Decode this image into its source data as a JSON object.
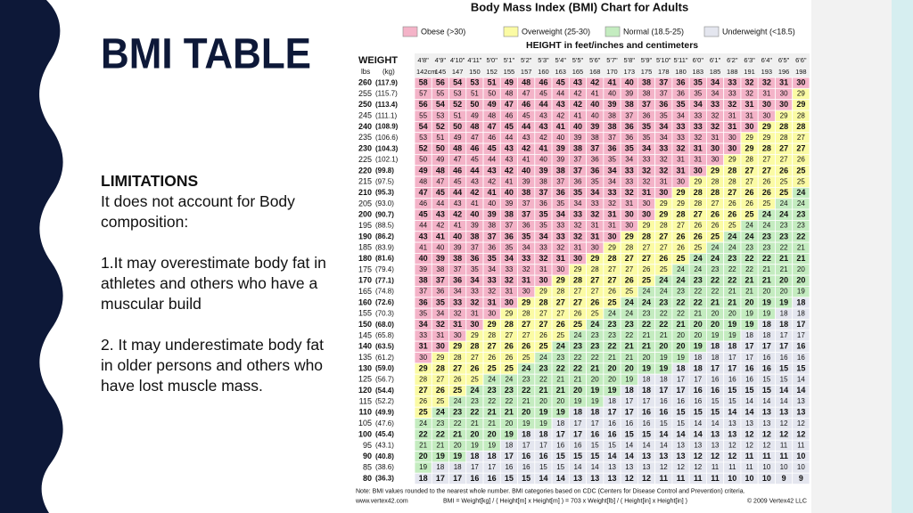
{
  "slide": {
    "title": "BMI TABLE",
    "heading": "LIMITATIONS",
    "paragraphs": [
      "It does not account for Body composition:",
      "1.It may overestimate body fat in athletes and others who have a muscular build",
      "2. It may underestimate body fat in older persons and others who have lost muscle mass."
    ]
  },
  "table": {
    "title": "Body Mass Index (BMI) Chart for Adults",
    "legend": [
      {
        "label": "Obese (>30)",
        "color": "#f4b3c8",
        "min": 30
      },
      {
        "label": "Overweight (25-30)",
        "color": "#fbfba4",
        "min": 25
      },
      {
        "label": "Normal (18.5-25)",
        "color": "#c4ecc0",
        "min": 18.5
      },
      {
        "label": "Underweight (<18.5)",
        "color": "#e4e6ef"
      }
    ],
    "height_caption": "HEIGHT in feet/inches and centimeters",
    "weight_label": "WEIGHT",
    "lbs_label": "lbs",
    "kg_label": "(kg)",
    "heights": [
      "4'8\"",
      "4'9\"",
      "4'10\"",
      "4'11\"",
      "5'0\"",
      "5'1\"",
      "5'2\"",
      "5'3\"",
      "5'4\"",
      "5'5\"",
      "5'6\"",
      "5'7\"",
      "5'8\"",
      "5'9\"",
      "5'10\"",
      "5'11\"",
      "6'0\"",
      "6'1\"",
      "6'2\"",
      "6'3\"",
      "6'4\"",
      "6'5\"",
      "6'6\""
    ],
    "cm": [
      "142cm",
      145,
      147,
      150,
      152,
      155,
      157,
      160,
      163,
      165,
      168,
      170,
      173,
      175,
      178,
      180,
      183,
      185,
      188,
      191,
      193,
      196,
      198
    ],
    "rows": [
      {
        "lbs": 260,
        "kg": "(117.9)",
        "bmi": [
          58,
          56,
          54,
          53,
          51,
          49,
          48,
          46,
          45,
          43,
          42,
          41,
          40,
          38,
          37,
          36,
          35,
          34,
          33,
          32,
          32,
          31,
          30
        ]
      },
      {
        "lbs": 255,
        "kg": "(115.7)",
        "bmi": [
          57,
          55,
          53,
          51,
          50,
          48,
          47,
          45,
          44,
          42,
          41,
          40,
          39,
          38,
          37,
          36,
          35,
          34,
          33,
          32,
          31,
          30,
          29
        ]
      },
      {
        "lbs": 250,
        "kg": "(113.4)",
        "bmi": [
          56,
          54,
          52,
          50,
          49,
          47,
          46,
          44,
          43,
          42,
          40,
          39,
          38,
          37,
          36,
          35,
          34,
          33,
          32,
          31,
          30,
          30,
          29
        ]
      },
      {
        "lbs": 245,
        "kg": "(111.1)",
        "bmi": [
          55,
          53,
          51,
          49,
          48,
          46,
          45,
          43,
          42,
          41,
          40,
          38,
          37,
          36,
          35,
          34,
          33,
          32,
          31,
          31,
          30,
          29,
          28
        ]
      },
      {
        "lbs": 240,
        "kg": "(108.9)",
        "bmi": [
          54,
          52,
          50,
          48,
          47,
          45,
          44,
          43,
          41,
          40,
          39,
          38,
          36,
          35,
          34,
          33,
          33,
          32,
          31,
          30,
          29,
          28,
          28
        ]
      },
      {
        "lbs": 235,
        "kg": "(106.6)",
        "bmi": [
          53,
          51,
          49,
          47,
          46,
          44,
          43,
          42,
          40,
          39,
          38,
          37,
          36,
          35,
          34,
          33,
          32,
          31,
          30,
          29,
          29,
          28,
          27
        ]
      },
      {
        "lbs": 230,
        "kg": "(104.3)",
        "bmi": [
          52,
          50,
          48,
          46,
          45,
          43,
          42,
          41,
          39,
          38,
          37,
          36,
          35,
          34,
          33,
          32,
          31,
          30,
          30,
          29,
          28,
          27,
          27
        ]
      },
      {
        "lbs": 225,
        "kg": "(102.1)",
        "bmi": [
          50,
          49,
          47,
          45,
          44,
          43,
          41,
          40,
          39,
          37,
          36,
          35,
          34,
          33,
          32,
          31,
          31,
          30,
          29,
          28,
          27,
          27,
          26
        ]
      },
      {
        "lbs": 220,
        "kg": "(99.8)",
        "bmi": [
          49,
          48,
          46,
          44,
          43,
          42,
          40,
          39,
          38,
          37,
          36,
          34,
          33,
          32,
          32,
          31,
          30,
          29,
          28,
          27,
          27,
          26,
          25
        ]
      },
      {
        "lbs": 215,
        "kg": "(97.5)",
        "bmi": [
          48,
          47,
          45,
          43,
          42,
          41,
          39,
          38,
          37,
          36,
          35,
          34,
          33,
          32,
          31,
          30,
          29,
          28,
          28,
          27,
          26,
          25,
          25
        ]
      },
      {
        "lbs": 210,
        "kg": "(95.3)",
        "bmi": [
          47,
          45,
          44,
          42,
          41,
          40,
          38,
          37,
          36,
          35,
          34,
          33,
          32,
          31,
          30,
          29,
          28,
          28,
          27,
          26,
          26,
          25,
          24
        ]
      },
      {
        "lbs": 205,
        "kg": "(93.0)",
        "bmi": [
          46,
          44,
          43,
          41,
          40,
          39,
          37,
          36,
          35,
          34,
          33,
          32,
          31,
          30,
          29,
          29,
          28,
          27,
          26,
          26,
          25,
          24,
          24
        ]
      },
      {
        "lbs": 200,
        "kg": "(90.7)",
        "bmi": [
          45,
          43,
          42,
          40,
          39,
          38,
          37,
          35,
          34,
          33,
          32,
          31,
          30,
          30,
          29,
          28,
          27,
          26,
          26,
          25,
          24,
          24,
          23
        ]
      },
      {
        "lbs": 195,
        "kg": "(88.5)",
        "bmi": [
          44,
          42,
          41,
          39,
          38,
          37,
          36,
          35,
          33,
          32,
          31,
          31,
          30,
          29,
          28,
          27,
          26,
          26,
          25,
          24,
          24,
          23,
          23
        ]
      },
      {
        "lbs": 190,
        "kg": "(86.2)",
        "bmi": [
          43,
          41,
          40,
          38,
          37,
          36,
          35,
          34,
          33,
          32,
          31,
          30,
          29,
          28,
          27,
          26,
          26,
          25,
          24,
          24,
          23,
          23,
          22
        ]
      },
      {
        "lbs": 185,
        "kg": "(83.9)",
        "bmi": [
          41,
          40,
          39,
          37,
          36,
          35,
          34,
          33,
          32,
          31,
          30,
          29,
          28,
          27,
          27,
          26,
          25,
          24,
          24,
          23,
          23,
          22,
          21
        ]
      },
      {
        "lbs": 180,
        "kg": "(81.6)",
        "bmi": [
          40,
          39,
          38,
          36,
          35,
          34,
          33,
          32,
          31,
          30,
          29,
          28,
          27,
          27,
          26,
          25,
          24,
          24,
          23,
          22,
          22,
          21,
          21
        ]
      },
      {
        "lbs": 175,
        "kg": "(79.4)",
        "bmi": [
          39,
          38,
          37,
          35,
          34,
          33,
          32,
          31,
          30,
          29,
          28,
          27,
          27,
          26,
          25,
          24,
          24,
          23,
          22,
          22,
          21,
          21,
          20
        ]
      },
      {
        "lbs": 170,
        "kg": "(77.1)",
        "bmi": [
          38,
          37,
          36,
          34,
          33,
          32,
          31,
          30,
          29,
          28,
          27,
          27,
          26,
          25,
          24,
          24,
          23,
          22,
          22,
          21,
          21,
          20,
          20
        ]
      },
      {
        "lbs": 165,
        "kg": "(74.8)",
        "bmi": [
          37,
          36,
          34,
          33,
          32,
          31,
          30,
          29,
          28,
          27,
          27,
          26,
          25,
          24,
          24,
          23,
          22,
          22,
          21,
          21,
          20,
          20,
          19
        ]
      },
      {
        "lbs": 160,
        "kg": "(72.6)",
        "bmi": [
          36,
          35,
          33,
          32,
          31,
          30,
          29,
          28,
          27,
          27,
          26,
          25,
          24,
          24,
          23,
          22,
          22,
          21,
          21,
          20,
          19,
          19,
          18
        ]
      },
      {
        "lbs": 155,
        "kg": "(70.3)",
        "bmi": [
          35,
          34,
          32,
          31,
          30,
          29,
          28,
          27,
          27,
          26,
          25,
          24,
          24,
          23,
          22,
          22,
          21,
          20,
          20,
          19,
          19,
          18,
          18
        ]
      },
      {
        "lbs": 150,
        "kg": "(68.0)",
        "bmi": [
          34,
          32,
          31,
          30,
          29,
          28,
          27,
          27,
          26,
          25,
          24,
          23,
          23,
          22,
          22,
          21,
          20,
          20,
          19,
          19,
          18,
          18,
          17
        ]
      },
      {
        "lbs": 145,
        "kg": "(65.8)",
        "bmi": [
          33,
          31,
          30,
          29,
          28,
          27,
          27,
          26,
          25,
          24,
          23,
          23,
          22,
          21,
          21,
          20,
          20,
          19,
          19,
          18,
          18,
          17,
          17
        ]
      },
      {
        "lbs": 140,
        "kg": "(63.5)",
        "bmi": [
          31,
          30,
          29,
          28,
          27,
          26,
          26,
          25,
          24,
          23,
          23,
          22,
          21,
          21,
          20,
          20,
          19,
          18,
          18,
          17,
          17,
          17,
          16
        ]
      },
      {
        "lbs": 135,
        "kg": "(61.2)",
        "bmi": [
          30,
          29,
          28,
          27,
          26,
          26,
          25,
          24,
          23,
          22,
          22,
          21,
          21,
          20,
          19,
          19,
          18,
          18,
          17,
          17,
          16,
          16,
          16
        ]
      },
      {
        "lbs": 130,
        "kg": "(59.0)",
        "bmi": [
          29,
          28,
          27,
          26,
          25,
          25,
          24,
          23,
          22,
          22,
          21,
          20,
          20,
          19,
          19,
          18,
          18,
          17,
          17,
          16,
          16,
          15,
          15
        ]
      },
      {
        "lbs": 125,
        "kg": "(56.7)",
        "bmi": [
          28,
          27,
          26,
          25,
          24,
          24,
          23,
          22,
          21,
          21,
          20,
          20,
          19,
          18,
          18,
          17,
          17,
          16,
          16,
          16,
          15,
          15,
          14
        ]
      },
      {
        "lbs": 120,
        "kg": "(54.4)",
        "bmi": [
          27,
          26,
          25,
          24,
          23,
          23,
          22,
          21,
          21,
          20,
          19,
          19,
          18,
          18,
          17,
          17,
          16,
          16,
          15,
          15,
          15,
          14,
          14
        ]
      },
      {
        "lbs": 115,
        "kg": "(52.2)",
        "bmi": [
          26,
          25,
          24,
          23,
          22,
          22,
          21,
          20,
          20,
          19,
          19,
          18,
          17,
          17,
          16,
          16,
          16,
          15,
          15,
          14,
          14,
          14,
          13
        ]
      },
      {
        "lbs": 110,
        "kg": "(49.9)",
        "bmi": [
          25,
          24,
          23,
          22,
          21,
          21,
          20,
          19,
          19,
          18,
          18,
          17,
          17,
          16,
          16,
          15,
          15,
          15,
          14,
          14,
          13,
          13,
          13
        ]
      },
      {
        "lbs": 105,
        "kg": "(47.6)",
        "bmi": [
          24,
          23,
          22,
          21,
          21,
          20,
          19,
          19,
          18,
          17,
          17,
          16,
          16,
          16,
          15,
          15,
          14,
          14,
          13,
          13,
          13,
          12,
          12
        ]
      },
      {
        "lbs": 100,
        "kg": "(45.4)",
        "bmi": [
          22,
          22,
          21,
          20,
          20,
          19,
          18,
          18,
          17,
          17,
          16,
          16,
          15,
          15,
          14,
          14,
          14,
          13,
          13,
          12,
          12,
          12,
          12
        ]
      },
      {
        "lbs": 95,
        "kg": "(43.1)",
        "bmi": [
          21,
          21,
          20,
          19,
          19,
          18,
          17,
          17,
          16,
          16,
          15,
          15,
          14,
          14,
          14,
          13,
          13,
          13,
          12,
          12,
          12,
          11,
          11
        ]
      },
      {
        "lbs": 90,
        "kg": "(40.8)",
        "bmi": [
          20,
          19,
          19,
          18,
          18,
          17,
          16,
          16,
          15,
          15,
          15,
          14,
          14,
          13,
          13,
          13,
          12,
          12,
          12,
          11,
          11,
          11,
          10
        ]
      },
      {
        "lbs": 85,
        "kg": "(38.6)",
        "bmi": [
          19,
          18,
          18,
          17,
          17,
          16,
          16,
          15,
          15,
          14,
          14,
          13,
          13,
          13,
          12,
          12,
          12,
          11,
          11,
          11,
          10,
          10,
          10
        ]
      },
      {
        "lbs": 80,
        "kg": "(36.3)",
        "bmi": [
          18,
          17,
          17,
          16,
          16,
          15,
          15,
          14,
          14,
          13,
          13,
          13,
          12,
          12,
          11,
          11,
          11,
          11,
          10,
          10,
          10,
          9,
          9
        ]
      }
    ],
    "footnote": "Note: BMI values rounded to the nearest whole number. BMI categories based on CDC (Centers for Disease Control and Prevention) criteria.",
    "footer": [
      "www.vertex42.com",
      "BMI = Weight[kg] / ( Height[m] x Height[m] ) = 703 x Weight[lb] / ( Height[in] x Height[in] )",
      "© 2009 Vertex42 LLC"
    ]
  }
}
